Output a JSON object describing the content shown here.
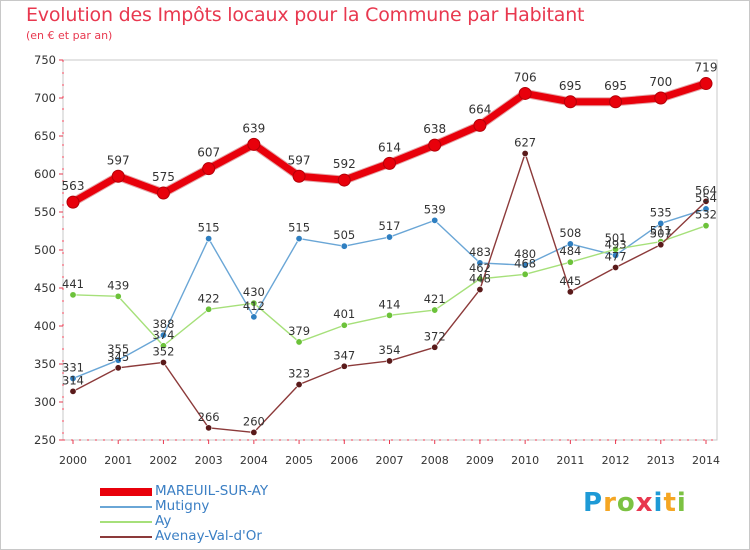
{
  "title": "Evolution des Impôts locaux pour la Commune par Habitant",
  "subtitle": "(en € et par an)",
  "logo": {
    "text": "Proxiti",
    "letters": [
      {
        "ch": "P",
        "color": "#1e9ad6"
      },
      {
        "ch": "r",
        "color": "#f5a623"
      },
      {
        "ch": "o",
        "color": "#7cc242"
      },
      {
        "ch": "x",
        "color": "#e8384f"
      },
      {
        "ch": "i",
        "color": "#1e9ad6"
      },
      {
        "ch": "t",
        "color": "#f5a623"
      },
      {
        "ch": "i",
        "color": "#7cc242"
      }
    ]
  },
  "chart_data": {
    "type": "line",
    "title": "Evolution des Impôts locaux pour la Commune par Habitant",
    "subtitle": "(en € et par an)",
    "xlabel": "",
    "ylabel": "",
    "x": [
      "2000",
      "2001",
      "2002",
      "2003",
      "2004",
      "2005",
      "2006",
      "2007",
      "2008",
      "2009",
      "2010",
      "2011",
      "2012",
      "2013",
      "2014"
    ],
    "ylim": [
      250,
      750
    ],
    "yticks": [
      250,
      300,
      350,
      400,
      450,
      500,
      550,
      600,
      650,
      700,
      750
    ],
    "grid": false,
    "legend_position": "bottom-left",
    "series": [
      {
        "name": "MAREUIL-SUR-AY",
        "color": "#e8000b",
        "marker_color": "#e8000b",
        "values": [
          563,
          597,
          575,
          607,
          639,
          597,
          592,
          614,
          638,
          664,
          706,
          695,
          695,
          700,
          719
        ],
        "labels": [
          "563",
          "597",
          "575",
          "607",
          "639",
          "597",
          "592",
          "614",
          "638",
          "664",
          "706",
          "695",
          "695",
          "700",
          "719"
        ]
      },
      {
        "name": "Mutigny",
        "color": "#6aa6d6",
        "marker_color": "#2f7fc1",
        "values": [
          331,
          355,
          388,
          515,
          412,
          515,
          505,
          517,
          539,
          483,
          480,
          508,
          493,
          535,
          554
        ],
        "labels": [
          "331",
          "355",
          "388",
          "515",
          "412",
          "515",
          "505",
          "517",
          "539",
          "483",
          "480",
          "508",
          "493",
          "535",
          "554"
        ]
      },
      {
        "name": "Ay",
        "color": "#a6e07a",
        "marker_color": "#6cc23a",
        "values": [
          441,
          439,
          374,
          422,
          430,
          379,
          401,
          414,
          421,
          462,
          468,
          484,
          501,
          511,
          532
        ],
        "labels": [
          "441",
          "439",
          "374",
          "422",
          "430",
          "379",
          "401",
          "414",
          "421",
          "462",
          "468",
          "484",
          "501",
          "511",
          "532"
        ]
      },
      {
        "name": "Avenay-Val-d'Or",
        "color": "#8c3a3a",
        "marker_color": "#5a1a1a",
        "values": [
          314,
          345,
          352,
          266,
          260,
          323,
          347,
          354,
          372,
          448,
          627,
          445,
          477,
          507,
          564
        ],
        "labels": [
          "314",
          "345",
          "352",
          "266",
          "260",
          "323",
          "347",
          "354",
          "372",
          "448",
          "627",
          "445",
          "477",
          "507",
          "564"
        ]
      }
    ]
  }
}
